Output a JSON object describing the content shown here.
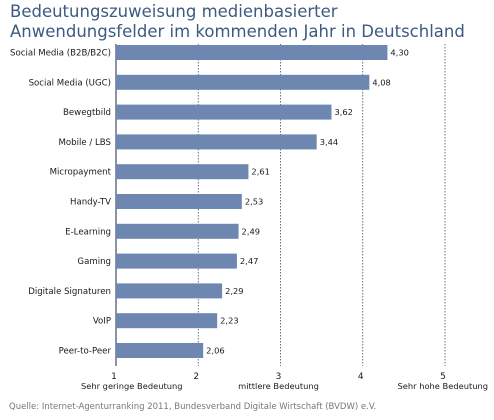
{
  "chart_data": {
    "type": "bar",
    "orientation": "horizontal",
    "title": "Bedeutungszuweisung medienbasierter Anwendungsfelder im kommenden Jahr in Deutschland",
    "categories": [
      "Social Media (B2B/B2C)",
      "Social Media (UGC)",
      "Bewegtbild",
      "Mobile / LBS",
      "Micropayment",
      "Handy-TV",
      "E-Learning",
      "Gaming",
      "Digitale Signaturen",
      "VoIP",
      "Peer-to-Peer"
    ],
    "values": [
      4.3,
      4.08,
      3.62,
      3.44,
      2.61,
      2.53,
      2.49,
      2.47,
      2.29,
      2.23,
      2.06
    ],
    "value_labels": [
      "4,30",
      "4,08",
      "3,62",
      "3,44",
      "2,61",
      "2,53",
      "2,49",
      "2,47",
      "2,29",
      "2,23",
      "2,06"
    ],
    "xlim": [
      1,
      5
    ],
    "xticks": [
      "1",
      "2",
      "3",
      "4",
      "5"
    ],
    "scale_labels": {
      "low": "Sehr geringe Bedeutung",
      "mid": "mittlere Bedeutung",
      "high": "Sehr hohe Bedeutung"
    },
    "bar_color": "#6d87b0",
    "grid_color": "#3d4e66",
    "source": "Quelle: Internet-Agenturranking 2011, Bundesverband Digitale Wirtschaft (BVDW) e.V."
  }
}
